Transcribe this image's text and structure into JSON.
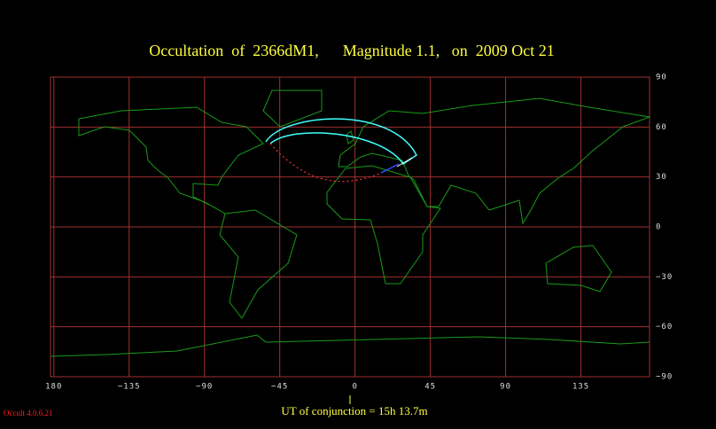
{
  "map": {
    "title": "Occultation  of  2366dM1,      Magnitude 1.1,   on  2009 Oct 21",
    "xlim": [
      -182,
      176
    ],
    "ylim": [
      -90,
      90
    ],
    "xticks": [
      {
        "value": -180,
        "label": "180"
      },
      {
        "value": -135,
        "label": "−135"
      },
      {
        "value": -90,
        "label": "−90"
      },
      {
        "value": -45,
        "label": "−45"
      },
      0,
      45,
      90,
      135
    ],
    "yticks": [
      90,
      60,
      30,
      0,
      {
        "value": -30,
        "label": "−30"
      },
      {
        "value": -60,
        "label": "−60"
      },
      {
        "value": -90,
        "label": "−90"
      }
    ],
    "grid_color": "#a03030"
  },
  "footer": {
    "conjunction": "UT of conjunction = 15h 13.7m",
    "version": "Occult 4.0.6.21"
  }
}
